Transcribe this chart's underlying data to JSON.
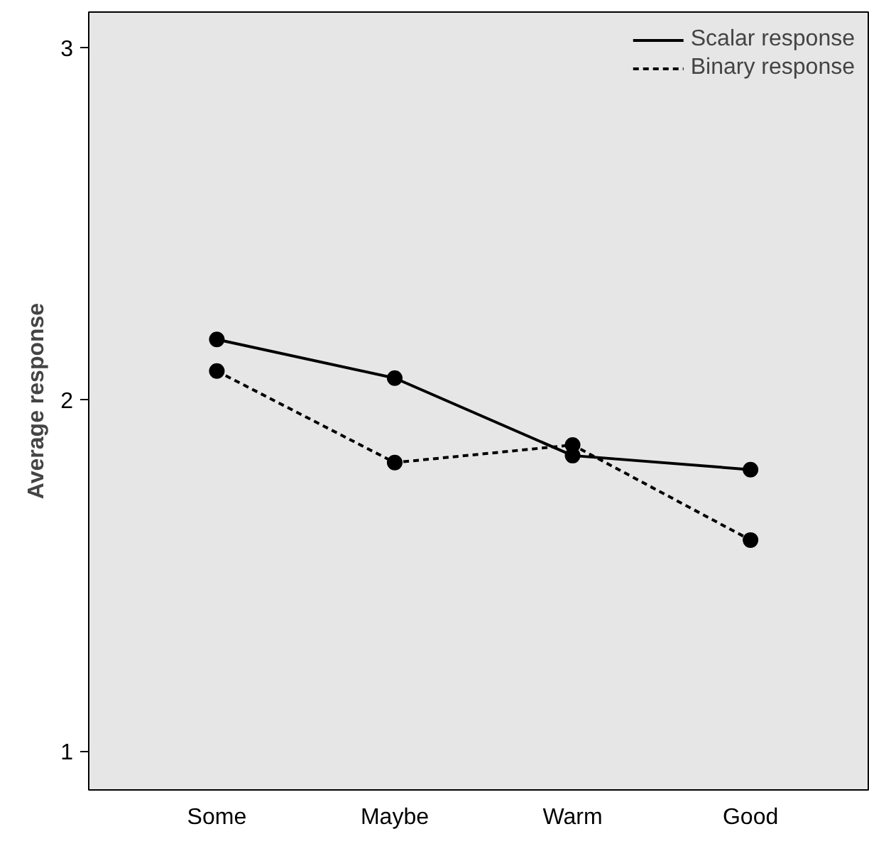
{
  "chart_data": {
    "type": "line",
    "ylabel": "Average response",
    "categories": [
      "Some",
      "Maybe",
      "Warm",
      "Good"
    ],
    "series": [
      {
        "name": "Scalar response",
        "color": "#000000",
        "values": [
          2.17,
          2.06,
          1.84,
          1.8
        ],
        "line_style": "solid"
      },
      {
        "name": "Binary response",
        "color": "#000000",
        "values": [
          2.08,
          1.82,
          1.87,
          1.6
        ],
        "line_style": "dashed"
      }
    ],
    "ylim": [
      0.89,
      3.1
    ],
    "yticks": [
      1,
      2,
      3
    ],
    "marker": "circle",
    "legend": "top right",
    "grid": false
  }
}
